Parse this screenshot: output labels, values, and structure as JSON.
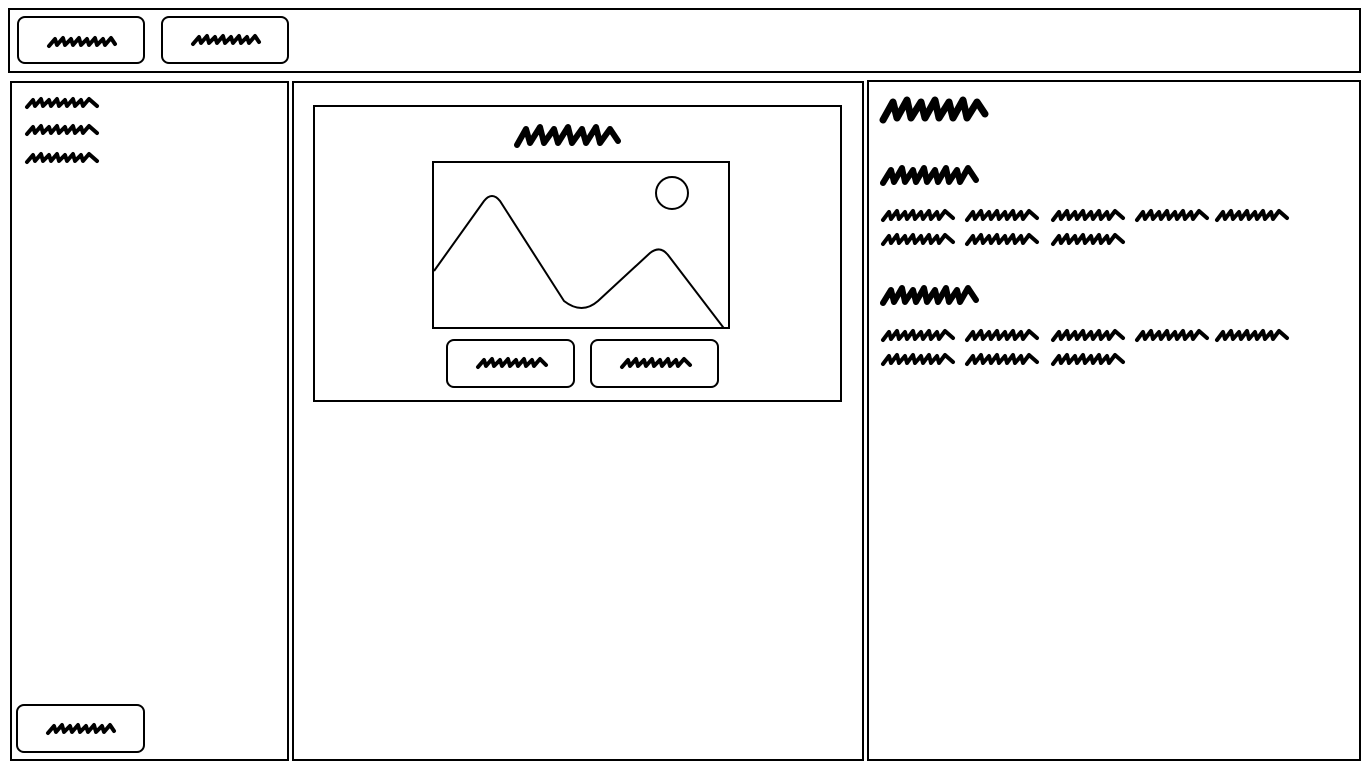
{
  "toolbar": {
    "buttons": [
      {
        "label": "",
        "name": "toolbar-button-1"
      },
      {
        "label": "",
        "name": "toolbar-button-2"
      }
    ]
  },
  "sidebar": {
    "items": [
      {
        "label": ""
      },
      {
        "label": ""
      },
      {
        "label": ""
      }
    ],
    "footer_button_label": ""
  },
  "main": {
    "card": {
      "title": "",
      "image": {
        "icon": "image-placeholder-icon"
      },
      "buttons": [
        {
          "label": ""
        },
        {
          "label": ""
        }
      ]
    }
  },
  "details": {
    "title": "",
    "sections": [
      {
        "heading": "",
        "body": ""
      },
      {
        "heading": "",
        "body": ""
      }
    ]
  },
  "colors": {
    "stroke": "#000000",
    "background": "#ffffff"
  }
}
